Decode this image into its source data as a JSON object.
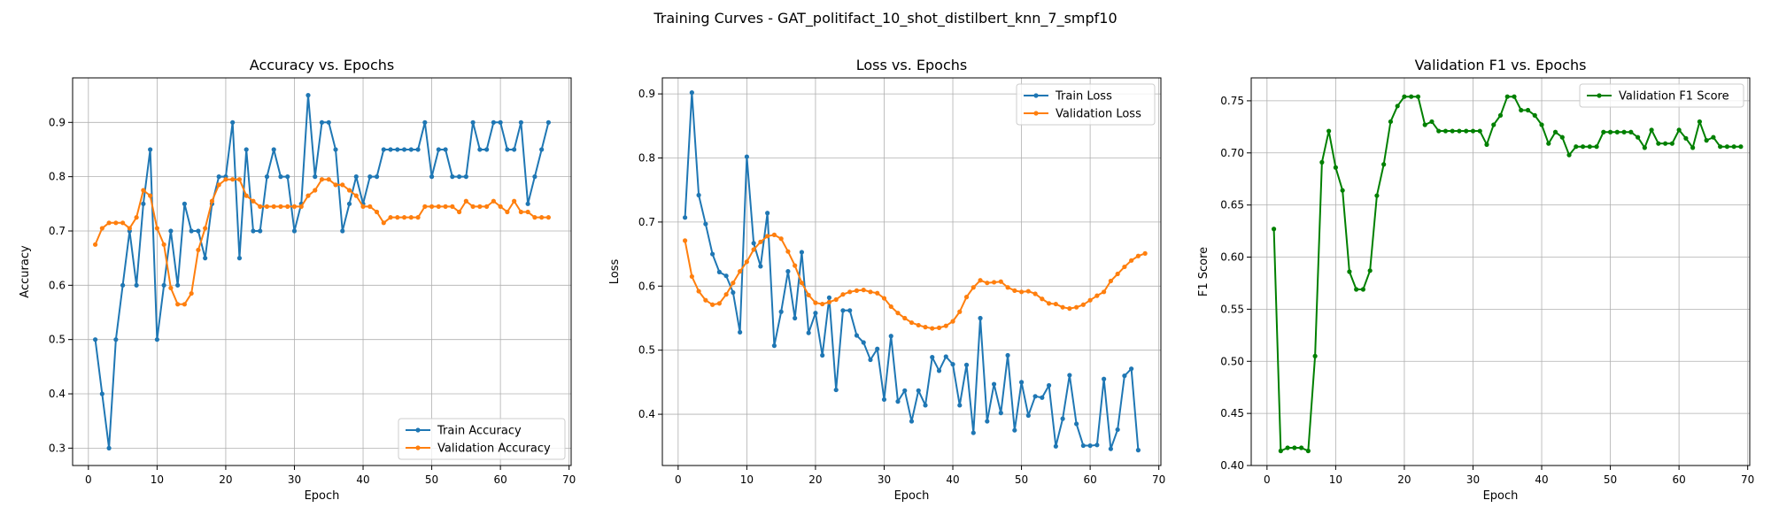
{
  "figure": {
    "title": "Training Curves - GAT_politifact_10_shot_distilbert_knn_7_smpf10"
  },
  "chart_data": [
    {
      "type": "line",
      "title": "Accuracy vs. Epochs",
      "xlabel": "Epoch",
      "ylabel": "Accuracy",
      "xlim": [
        -2.3,
        70.3
      ],
      "ylim": [
        0.268,
        0.982
      ],
      "xticks": [
        0,
        10,
        20,
        30,
        40,
        50,
        60,
        70
      ],
      "yticks": [
        0.3,
        0.4,
        0.5,
        0.6,
        0.7,
        0.8,
        0.9
      ],
      "ytick_decimals": 1,
      "grid": true,
      "legend": "lower-right",
      "x_start": 1,
      "series": [
        {
          "name": "Train Accuracy",
          "color": "#1f77b4",
          "values": [
            0.5,
            0.4,
            0.3,
            0.5,
            0.6,
            0.7,
            0.6,
            0.75,
            0.85,
            0.5,
            0.6,
            0.7,
            0.6,
            0.75,
            0.7,
            0.7,
            0.65,
            0.75,
            0.8,
            0.8,
            0.9,
            0.65,
            0.85,
            0.7,
            0.7,
            0.8,
            0.85,
            0.8,
            0.8,
            0.7,
            0.75,
            0.95,
            0.8,
            0.9,
            0.9,
            0.85,
            0.7,
            0.75,
            0.8,
            0.75,
            0.8,
            0.8,
            0.85,
            0.85,
            0.85,
            0.85,
            0.85,
            0.85,
            0.9,
            0.8,
            0.85,
            0.85,
            0.8,
            0.8,
            0.8,
            0.9,
            0.85,
            0.85,
            0.9,
            0.9,
            0.85,
            0.85,
            0.9,
            0.75,
            0.8,
            0.85,
            0.9
          ]
        },
        {
          "name": "Validation Accuracy",
          "color": "#ff7f0e",
          "values": [
            0.675,
            0.705,
            0.715,
            0.715,
            0.715,
            0.705,
            0.725,
            0.775,
            0.765,
            0.705,
            0.675,
            0.595,
            0.565,
            0.565,
            0.585,
            0.665,
            0.705,
            0.755,
            0.785,
            0.795,
            0.795,
            0.795,
            0.765,
            0.755,
            0.745,
            0.745,
            0.745,
            0.745,
            0.745,
            0.745,
            0.745,
            0.765,
            0.775,
            0.795,
            0.795,
            0.785,
            0.785,
            0.775,
            0.765,
            0.745,
            0.745,
            0.735,
            0.715,
            0.725,
            0.725,
            0.725,
            0.725,
            0.725,
            0.745,
            0.745,
            0.745,
            0.745,
            0.745,
            0.735,
            0.755,
            0.745,
            0.745,
            0.745,
            0.755,
            0.745,
            0.735,
            0.755,
            0.735,
            0.735,
            0.725,
            0.725,
            0.725
          ]
        }
      ]
    },
    {
      "type": "line",
      "title": "Loss vs. Epochs",
      "xlabel": "Epoch",
      "ylabel": "Loss",
      "xlim": [
        -2.3,
        70.3
      ],
      "ylim": [
        0.32,
        0.925
      ],
      "xticks": [
        0,
        10,
        20,
        30,
        40,
        50,
        60,
        70
      ],
      "yticks": [
        0.4,
        0.5,
        0.6,
        0.7,
        0.8,
        0.9
      ],
      "ytick_decimals": 1,
      "grid": true,
      "legend": "upper-right",
      "x_start": 1,
      "series": [
        {
          "name": "Train Loss",
          "color": "#1f77b4",
          "values": [
            0.707,
            0.902,
            0.742,
            0.697,
            0.65,
            0.622,
            0.616,
            0.59,
            0.528,
            0.802,
            0.667,
            0.631,
            0.714,
            0.507,
            0.56,
            0.623,
            0.55,
            0.653,
            0.527,
            0.558,
            0.492,
            0.582,
            0.438,
            0.562,
            0.562,
            0.523,
            0.512,
            0.485,
            0.502,
            0.423,
            0.522,
            0.42,
            0.437,
            0.389,
            0.437,
            0.414,
            0.489,
            0.468,
            0.49,
            0.478,
            0.414,
            0.477,
            0.371,
            0.55,
            0.389,
            0.447,
            0.402,
            0.492,
            0.375,
            0.45,
            0.398,
            0.428,
            0.426,
            0.445,
            0.35,
            0.393,
            0.461,
            0.385,
            0.351,
            0.351,
            0.352,
            0.455,
            0.346,
            0.376,
            0.46,
            0.471,
            0.344
          ]
        },
        {
          "name": "Validation Loss",
          "color": "#ff7f0e",
          "values": [
            0.671,
            0.615,
            0.592,
            0.578,
            0.571,
            0.573,
            0.587,
            0.605,
            0.623,
            0.638,
            0.657,
            0.669,
            0.678,
            0.68,
            0.674,
            0.654,
            0.632,
            0.605,
            0.586,
            0.574,
            0.572,
            0.575,
            0.579,
            0.587,
            0.591,
            0.593,
            0.594,
            0.591,
            0.589,
            0.581,
            0.568,
            0.558,
            0.55,
            0.543,
            0.539,
            0.536,
            0.534,
            0.535,
            0.538,
            0.545,
            0.56,
            0.583,
            0.598,
            0.609,
            0.605,
            0.606,
            0.607,
            0.598,
            0.593,
            0.591,
            0.592,
            0.588,
            0.58,
            0.573,
            0.572,
            0.567,
            0.565,
            0.567,
            0.571,
            0.578,
            0.585,
            0.591,
            0.608,
            0.619,
            0.63,
            0.64,
            0.647,
            0.651
          ]
        }
      ]
    },
    {
      "type": "line",
      "title": "Validation F1 vs. Epochs",
      "xlabel": "Epoch",
      "ylabel": "F1 Score",
      "xlim": [
        -2.3,
        70.3
      ],
      "ylim": [
        0.4,
        0.772
      ],
      "xticks": [
        0,
        10,
        20,
        30,
        40,
        50,
        60,
        70
      ],
      "yticks": [
        0.4,
        0.45,
        0.5,
        0.55,
        0.6,
        0.65,
        0.7,
        0.75
      ],
      "ytick_decimals": 2,
      "grid": true,
      "legend": "upper-right",
      "x_start": 1,
      "series": [
        {
          "name": "Validation F1 Score",
          "color": "#008000",
          "values": [
            0.627,
            0.414,
            0.417,
            0.417,
            0.417,
            0.414,
            0.505,
            0.691,
            0.721,
            0.686,
            0.664,
            0.586,
            0.569,
            0.569,
            0.587,
            0.659,
            0.689,
            0.73,
            0.745,
            0.754,
            0.754,
            0.754,
            0.727,
            0.73,
            0.721,
            0.721,
            0.721,
            0.721,
            0.721,
            0.721,
            0.721,
            0.708,
            0.727,
            0.736,
            0.754,
            0.754,
            0.741,
            0.741,
            0.736,
            0.727,
            0.709,
            0.72,
            0.715,
            0.698,
            0.706,
            0.706,
            0.706,
            0.706,
            0.72,
            0.72,
            0.72,
            0.72,
            0.72,
            0.715,
            0.705,
            0.722,
            0.709,
            0.709,
            0.709,
            0.722,
            0.714,
            0.705,
            0.73,
            0.712,
            0.715,
            0.706,
            0.706,
            0.706,
            0.706
          ]
        }
      ]
    }
  ]
}
